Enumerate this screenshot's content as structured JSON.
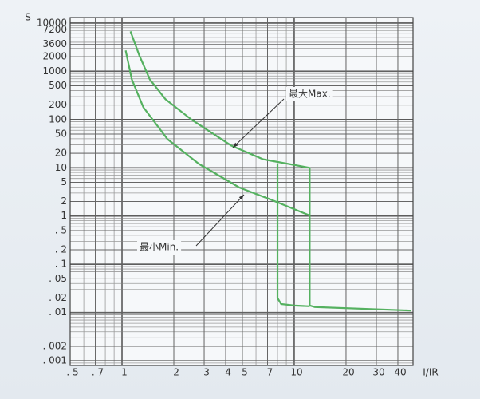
{
  "chart_data": {
    "type": "line",
    "y_label": "S",
    "x_label": "I/IR",
    "log_x": true,
    "log_y": true,
    "grid": true,
    "xlim": [
      0.5,
      49
    ],
    "ylim": [
      0.0008,
      13000
    ],
    "xticks": [
      {
        "value": 0.5,
        "label": ". 5"
      },
      {
        "value": 0.7,
        "label": ". 7"
      },
      1,
      2,
      3,
      4,
      5,
      7,
      10,
      20,
      30,
      40
    ],
    "yticks": [
      10000,
      7200,
      3600,
      2000,
      1000,
      500,
      200,
      100,
      50,
      20,
      10,
      5,
      2,
      1,
      {
        "value": 0.5,
        "label": ". 5"
      },
      {
        "value": 0.2,
        "label": ". 2"
      },
      {
        "value": 0.1,
        "label": ". 1"
      },
      {
        "value": 0.05,
        "label": ". 05"
      },
      {
        "value": 0.02,
        "label": ". 02"
      },
      {
        "value": 0.01,
        "label": ". 01"
      },
      {
        "value": 0.002,
        "label": ". 002"
      },
      {
        "value": 0.001,
        "label": ". 001"
      }
    ],
    "annotations": [
      "最大Max.",
      "最小Min."
    ],
    "series": [
      {
        "color": "#55b160",
        "x": [
          1.12,
          1.26,
          1.45,
          1.79,
          2.53,
          4.3,
          6.6,
          12.3,
          12.3,
          13.2,
          47.6
        ],
        "values": [
          6700,
          2140,
          680,
          263,
          100,
          29,
          15,
          10,
          0.014,
          0.013,
          0.011
        ]
      },
      {
        "color": "#55b160",
        "x": [
          1.05,
          1.14,
          1.33,
          1.84,
          2.8,
          4.8,
          7.3,
          12.3
        ],
        "values": [
          2700,
          680,
          180,
          39,
          12,
          3.9,
          2.2,
          1.03
        ]
      },
      {
        "color": "#55b160",
        "x": [
          8,
          8,
          8.4,
          10,
          12.3
        ],
        "values": [
          12,
          0.02,
          0.015,
          0.014,
          0.0135
        ]
      }
    ]
  }
}
